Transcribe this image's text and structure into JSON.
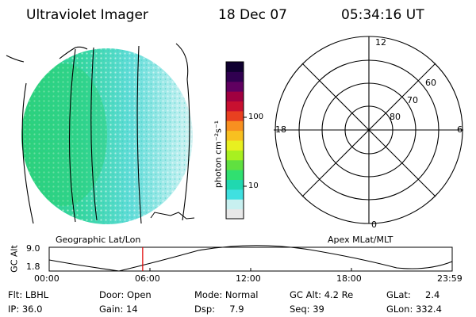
{
  "header": {
    "instrument": "Ultraviolet Imager",
    "date": "18 Dec 07",
    "time": "05:34:16 UT"
  },
  "colorbar": {
    "unit_label": "photon cm⁻²s⁻¹",
    "tick_100": "100",
    "tick_10": "10",
    "colors": [
      "#e8e8e8",
      "#c8f0f0",
      "#40e0e0",
      "#20d8b0",
      "#30e070",
      "#60e040",
      "#a8f020",
      "#e8f020",
      "#f8c020",
      "#f89020",
      "#e84020",
      "#c81030",
      "#a00040",
      "#600060",
      "#300050",
      "#100030"
    ]
  },
  "polar": {
    "mlt_top": "12",
    "mlt_left": "18",
    "mlt_right": "6",
    "mlt_bottom": "0",
    "lat_60": "60",
    "lat_70": "70",
    "lat_80": "80"
  },
  "panel_labels": {
    "geographic": "Geographic Lat/Lon",
    "apex": "Apex  MLat/MLT"
  },
  "altitude_plot": {
    "ylabel": "GC Alt",
    "ytick_top": "9.0",
    "ytick_bottom": "1.8",
    "x_ticks": [
      "00:00",
      "06:00",
      "12:00",
      "18:00",
      "23:59"
    ],
    "current_time_fraction": 0.232
  },
  "info": {
    "flt": "Flt: LBHL",
    "ip": "IP: 36.0",
    "door": "Door: Open",
    "gain": "Gain: 14",
    "mode": "Mode: Normal",
    "dsp": "Dsp:     7.9",
    "gcalt": "GC Alt: 4.2 Re",
    "seq": "Seq: 39",
    "glat": "GLat:     2.4",
    "glon": "GLon: 332.4"
  }
}
